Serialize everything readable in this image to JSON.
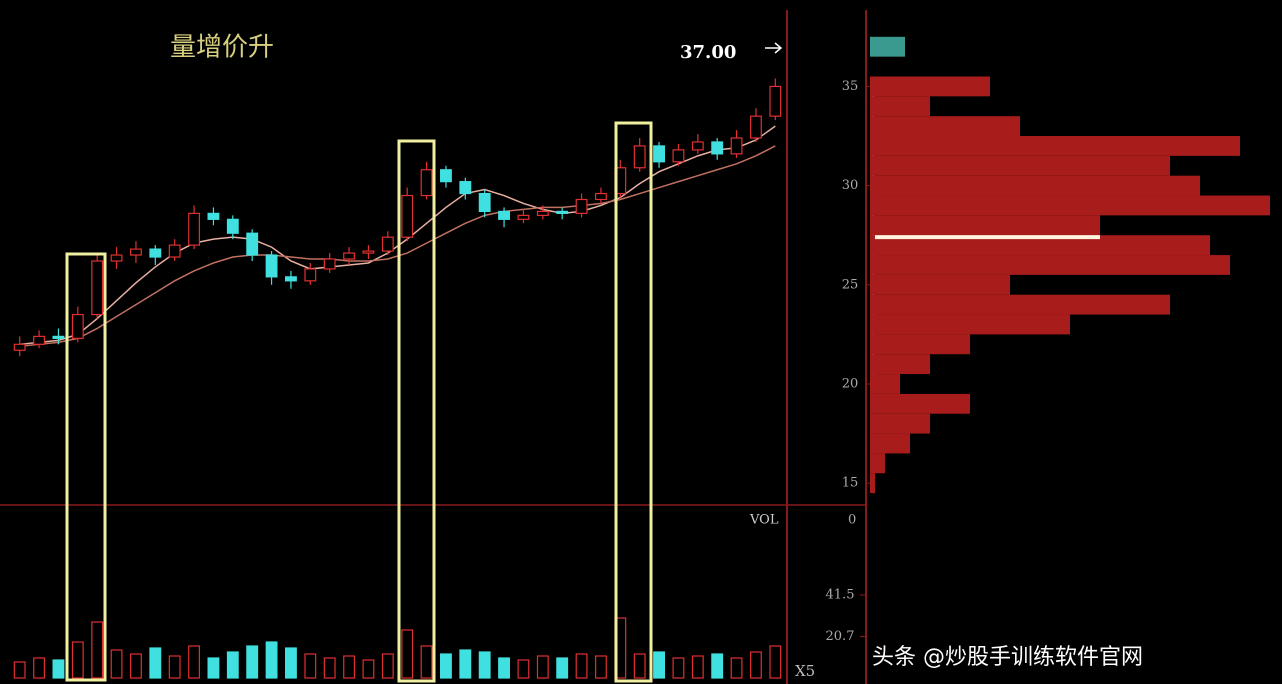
{
  "chart_data": {
    "type": "candlestick",
    "title": "量增价升",
    "price_label": "37.00",
    "ylim": [
      13.9,
      38.6
    ],
    "yticks": [
      15,
      20,
      25,
      30,
      35
    ],
    "up_color": "#e03030",
    "down_color": "#40e0e0",
    "candles": [
      {
        "o": 21.7,
        "h": 22.4,
        "l": 21.4,
        "c": 22.0
      },
      {
        "o": 22.0,
        "h": 22.7,
        "l": 21.8,
        "c": 22.4
      },
      {
        "o": 22.4,
        "h": 22.8,
        "l": 22.0,
        "c": 22.3
      },
      {
        "o": 22.3,
        "h": 23.9,
        "l": 22.1,
        "c": 23.5
      },
      {
        "o": 23.5,
        "h": 26.6,
        "l": 23.3,
        "c": 26.2
      },
      {
        "o": 26.2,
        "h": 26.9,
        "l": 25.8,
        "c": 26.5
      },
      {
        "o": 26.5,
        "h": 27.2,
        "l": 26.1,
        "c": 26.8
      },
      {
        "o": 26.8,
        "h": 27.0,
        "l": 26.0,
        "c": 26.4
      },
      {
        "o": 26.4,
        "h": 27.3,
        "l": 26.2,
        "c": 27.0
      },
      {
        "o": 27.0,
        "h": 29.0,
        "l": 26.8,
        "c": 28.6
      },
      {
        "o": 28.6,
        "h": 28.9,
        "l": 28.0,
        "c": 28.3
      },
      {
        "o": 28.3,
        "h": 28.5,
        "l": 27.3,
        "c": 27.6
      },
      {
        "o": 27.6,
        "h": 27.8,
        "l": 26.2,
        "c": 26.5
      },
      {
        "o": 26.5,
        "h": 26.7,
        "l": 25.0,
        "c": 25.4
      },
      {
        "o": 25.4,
        "h": 25.7,
        "l": 24.8,
        "c": 25.2
      },
      {
        "o": 25.2,
        "h": 26.1,
        "l": 25.0,
        "c": 25.8
      },
      {
        "o": 25.8,
        "h": 26.6,
        "l": 25.6,
        "c": 26.3
      },
      {
        "o": 26.3,
        "h": 26.9,
        "l": 26.0,
        "c": 26.6
      },
      {
        "o": 26.6,
        "h": 27.0,
        "l": 26.3,
        "c": 26.7
      },
      {
        "o": 26.7,
        "h": 27.7,
        "l": 26.5,
        "c": 27.4
      },
      {
        "o": 27.4,
        "h": 29.9,
        "l": 27.2,
        "c": 29.5
      },
      {
        "o": 29.5,
        "h": 31.2,
        "l": 29.3,
        "c": 30.8
      },
      {
        "o": 30.8,
        "h": 31.0,
        "l": 29.9,
        "c": 30.2
      },
      {
        "o": 30.2,
        "h": 30.4,
        "l": 29.3,
        "c": 29.6
      },
      {
        "o": 29.6,
        "h": 29.8,
        "l": 28.4,
        "c": 28.7
      },
      {
        "o": 28.7,
        "h": 28.9,
        "l": 27.9,
        "c": 28.3
      },
      {
        "o": 28.3,
        "h": 28.8,
        "l": 28.1,
        "c": 28.5
      },
      {
        "o": 28.5,
        "h": 29.0,
        "l": 28.3,
        "c": 28.7
      },
      {
        "o": 28.7,
        "h": 28.9,
        "l": 28.3,
        "c": 28.6
      },
      {
        "o": 28.6,
        "h": 29.6,
        "l": 28.4,
        "c": 29.3
      },
      {
        "o": 29.3,
        "h": 29.9,
        "l": 29.1,
        "c": 29.6
      },
      {
        "o": 29.6,
        "h": 31.3,
        "l": 29.4,
        "c": 30.9
      },
      {
        "o": 30.9,
        "h": 32.4,
        "l": 30.7,
        "c": 32.0
      },
      {
        "o": 32.0,
        "h": 32.2,
        "l": 30.9,
        "c": 31.2
      },
      {
        "o": 31.2,
        "h": 32.1,
        "l": 31.0,
        "c": 31.8
      },
      {
        "o": 31.8,
        "h": 32.6,
        "l": 31.6,
        "c": 32.2
      },
      {
        "o": 32.2,
        "h": 32.4,
        "l": 31.3,
        "c": 31.6
      },
      {
        "o": 31.6,
        "h": 32.8,
        "l": 31.4,
        "c": 32.4
      },
      {
        "o": 32.4,
        "h": 33.9,
        "l": 32.2,
        "c": 33.5
      },
      {
        "o": 33.5,
        "h": 35.4,
        "l": 33.3,
        "c": 35.0
      }
    ],
    "ma_series": [
      {
        "color": "#e8b0a0",
        "values": [
          22.0,
          22.1,
          22.2,
          22.5,
          23.3,
          24.2,
          25.1,
          25.9,
          26.6,
          27.1,
          27.3,
          27.4,
          27.3,
          26.9,
          26.2,
          25.8,
          25.9,
          26.0,
          26.1,
          26.6,
          27.3,
          28.1,
          28.9,
          29.6,
          29.8,
          29.5,
          29.1,
          28.8,
          28.6,
          28.7,
          29.0,
          29.4,
          30.1,
          30.7,
          31.1,
          31.5,
          31.8,
          31.9,
          32.3,
          33.0
        ]
      },
      {
        "color": "#c07060",
        "values": [
          21.9,
          22.0,
          22.1,
          22.3,
          22.8,
          23.4,
          24.0,
          24.6,
          25.2,
          25.7,
          26.1,
          26.4,
          26.5,
          26.5,
          26.4,
          26.3,
          26.3,
          26.2,
          26.2,
          26.3,
          26.6,
          27.1,
          27.6,
          28.1,
          28.5,
          28.7,
          28.8,
          28.9,
          28.9,
          29.0,
          29.1,
          29.3,
          29.6,
          29.9,
          30.2,
          30.5,
          30.8,
          31.1,
          31.5,
          32.0
        ]
      }
    ],
    "volume_label": "VOL",
    "volume_zero_label": "0",
    "volume_scale_label": "X5",
    "vylim": [
      0,
      86.5
    ],
    "vyticks": [
      20.7,
      41.5
    ],
    "volumes": [
      8,
      10,
      9,
      18,
      28,
      14,
      12,
      15,
      11,
      16,
      10,
      13,
      16,
      18,
      15,
      12,
      10,
      11,
      9,
      12,
      24,
      16,
      12,
      14,
      13,
      10,
      9,
      11,
      10,
      12,
      11,
      30,
      12,
      13,
      10,
      11,
      12,
      10,
      13,
      16
    ],
    "profile": {
      "prices": [
        15,
        16,
        17,
        18,
        19,
        20,
        21,
        22,
        23,
        24,
        25,
        26,
        27,
        28,
        29,
        30,
        31,
        32,
        33,
        34,
        35,
        36,
        37
      ],
      "values": [
        5,
        15,
        40,
        60,
        100,
        30,
        60,
        100,
        200,
        300,
        140,
        360,
        340,
        230,
        400,
        330,
        300,
        370,
        150,
        60,
        120,
        0,
        35
      ],
      "xlim": [
        0,
        410
      ],
      "color": "#a81c1c",
      "top_color": "#3a9a90",
      "last_price": 27.4
    },
    "watermark": "头条 @炒股手训练软件官网"
  }
}
